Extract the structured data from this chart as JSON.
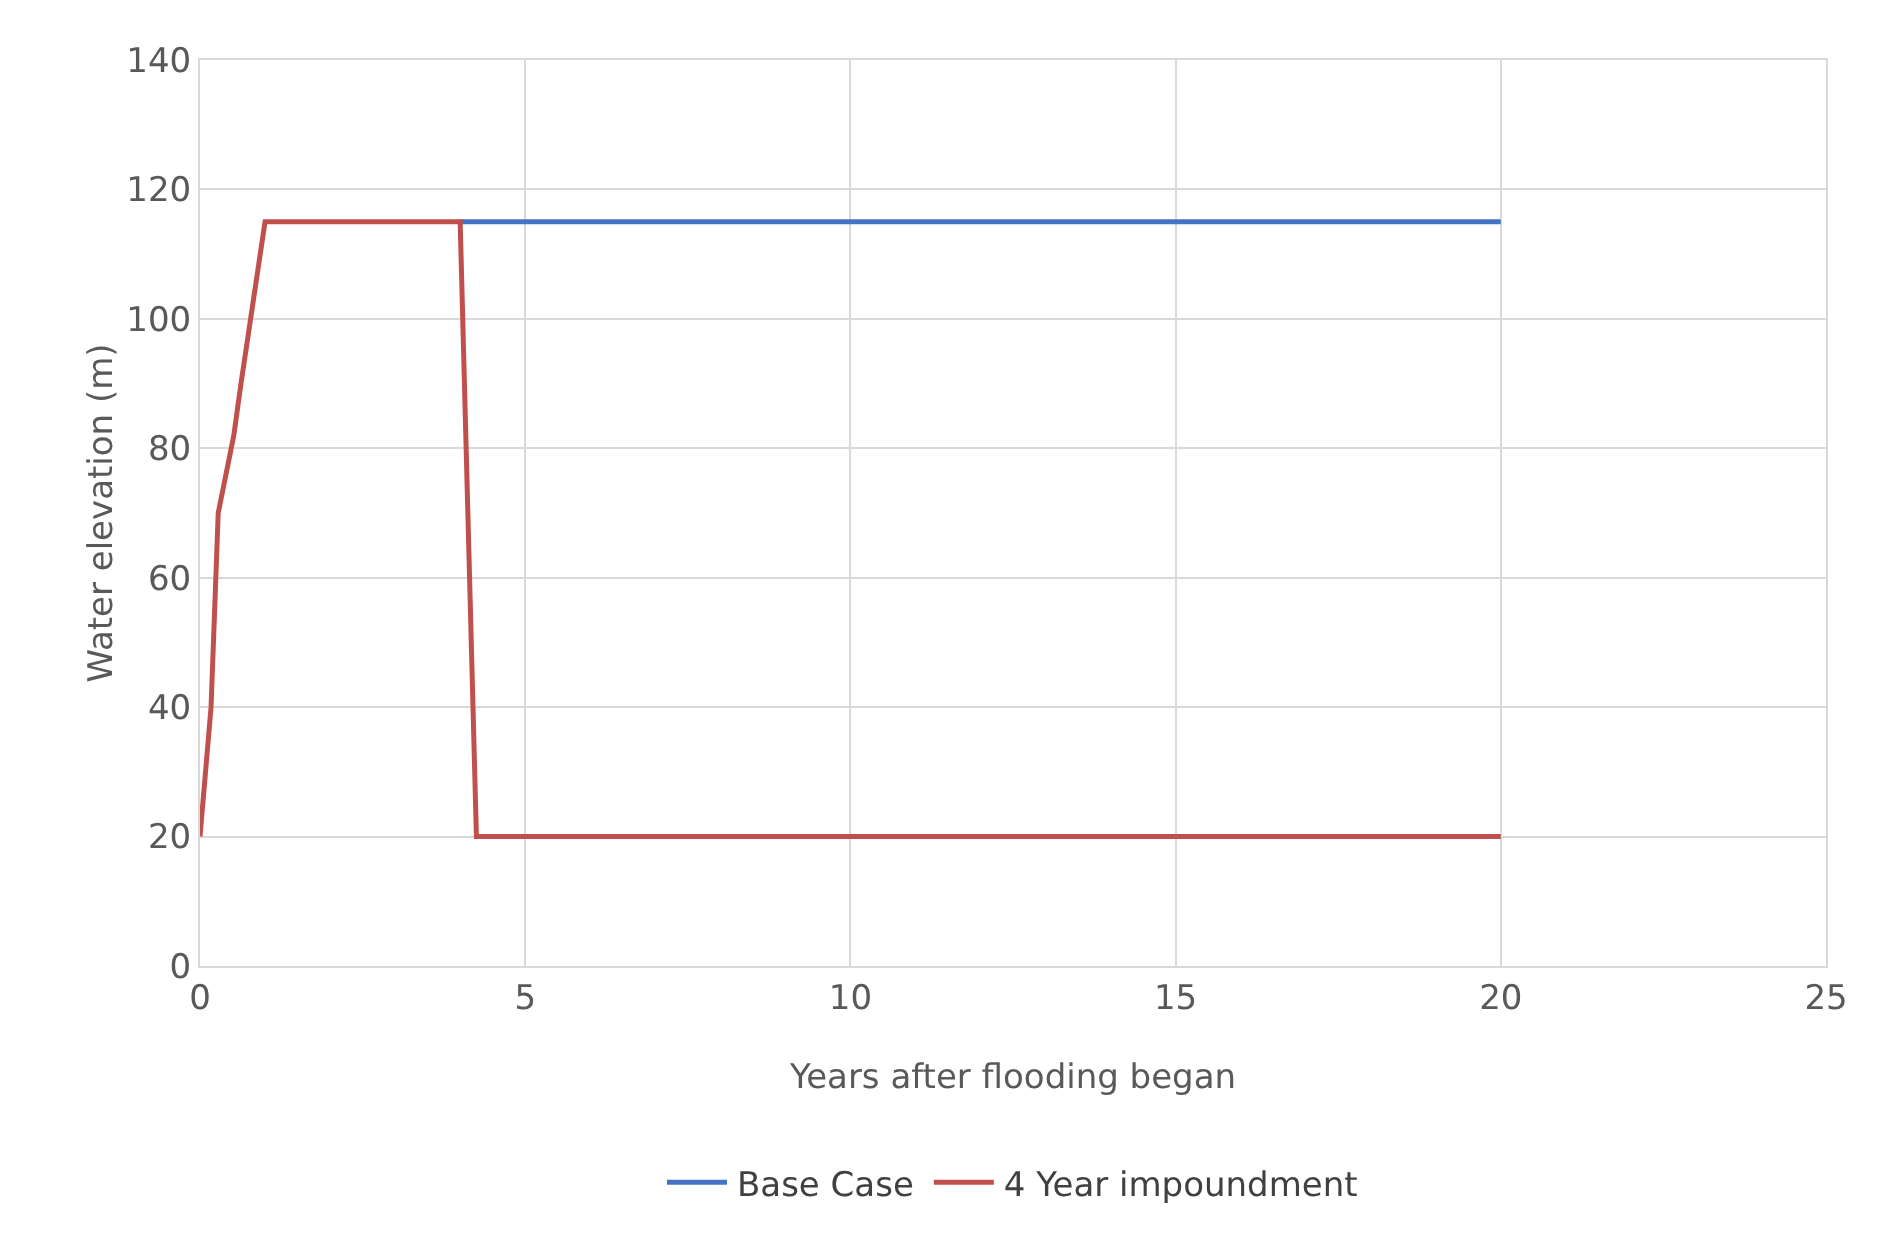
{
  "chart_data": {
    "type": "line",
    "xlabel": "Years after flooding began",
    "ylabel": "Water elevation (m)",
    "series": [
      {
        "name": "Base Case",
        "color": "#4472c4",
        "x": [
          4,
          20
        ],
        "values": [
          115,
          115
        ]
      },
      {
        "name": "4 Year impoundment",
        "color": "#c0504d",
        "x": [
          0,
          0.17,
          0.28,
          0.52,
          0.63,
          1,
          4,
          4.25,
          20
        ],
        "values": [
          20,
          40,
          70,
          82,
          90,
          115,
          115,
          20,
          20
        ]
      }
    ],
    "xlim": [
      0,
      25
    ],
    "xticks": [
      0,
      5,
      10,
      15,
      20,
      25
    ],
    "ylim": [
      0,
      140
    ],
    "yticks": [
      0,
      20,
      40,
      60,
      80,
      100,
      120,
      140
    ],
    "grid": true,
    "legend": "bottom",
    "marker": "none",
    "line_style": "solid"
  }
}
